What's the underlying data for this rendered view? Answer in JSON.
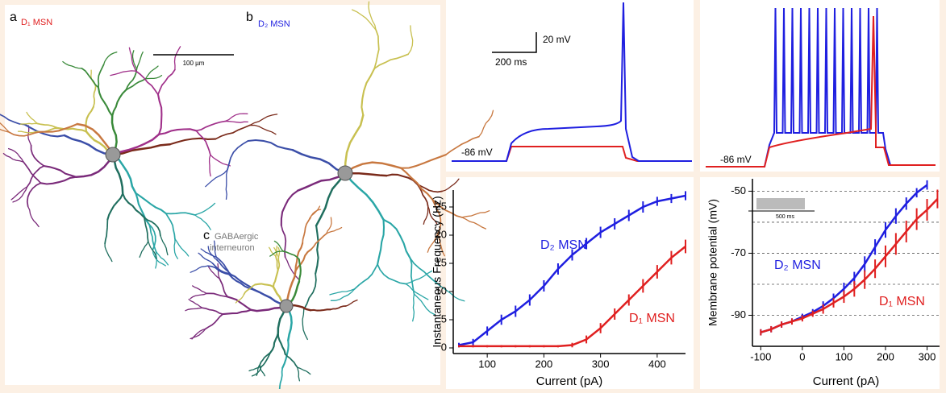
{
  "panels": {
    "a_label": "a",
    "a_title": "D₁ MSN",
    "b_label": "b",
    "b_title": "D₂ MSN",
    "c_label": "c",
    "c_title_1": "GABAergic",
    "c_title_2": "interneuron",
    "scale_bar": "100 µm"
  },
  "traces": {
    "resting_left": "-86 mV",
    "resting_right": "-86 mV",
    "scale_v": "20 mV",
    "scale_t": "200 ms",
    "inset_t": "500 ms"
  },
  "chart_data": [
    {
      "type": "line",
      "x_label": "Current (pA)",
      "y_label": "Instantaneous Frequency (Hz)",
      "xlim": [
        40,
        450
      ],
      "ylim": [
        -1,
        28
      ],
      "xticks": [
        100,
        200,
        300,
        400
      ],
      "yticks": [
        0,
        5,
        10,
        15,
        20,
        25
      ],
      "x": [
        50,
        75,
        100,
        125,
        150,
        175,
        200,
        225,
        250,
        275,
        300,
        325,
        350,
        375,
        400,
        425,
        450
      ],
      "series": [
        {
          "name": "D₂ MSN",
          "color": "#1f1fe0",
          "values": [
            0.5,
            1,
            3,
            5,
            6.5,
            8.5,
            11,
            14,
            16.5,
            18.5,
            20.5,
            22,
            23.5,
            25,
            26,
            26.5,
            27
          ],
          "errors": [
            0.4,
            0.6,
            0.8,
            0.9,
            1,
            1,
            1,
            1,
            1,
            1,
            1,
            1,
            1,
            1,
            0.8,
            0.8,
            0.8
          ]
        },
        {
          "name": "D₁ MSN",
          "color": "#e02020",
          "values": [
            0.3,
            0.3,
            0.3,
            0.3,
            0.3,
            0.3,
            0.3,
            0.3,
            0.5,
            1.5,
            3.5,
            6,
            8.5,
            11,
            13.5,
            16,
            18
          ],
          "errors": [
            0.2,
            0.2,
            0.2,
            0.2,
            0.2,
            0.2,
            0.2,
            0.2,
            0.4,
            0.7,
            0.9,
            1,
            1,
            1.2,
            1.2,
            1.2,
            1.2
          ]
        }
      ]
    },
    {
      "type": "line",
      "x_label": "Current (pA)",
      "y_label": "Membrane potential (mV)",
      "xlim": [
        -120,
        330
      ],
      "ylim": [
        -100,
        -46
      ],
      "xticks": [
        -100,
        0,
        100,
        200,
        300
      ],
      "yticks": [
        -50,
        -70,
        -90
      ],
      "grid_values": [
        -50,
        -60,
        -70,
        -80,
        -90
      ],
      "x": [
        -100,
        -75,
        -50,
        -25,
        0,
        25,
        50,
        75,
        100,
        125,
        150,
        175,
        200,
        225,
        250,
        275,
        300,
        325
      ],
      "series": [
        {
          "name": "D₂ MSN",
          "color": "#1f1fe0",
          "values": [
            -95.5,
            -94.5,
            -93,
            -92,
            -90.5,
            -89,
            -87,
            -84.5,
            -81.5,
            -78,
            -73.5,
            -68,
            -62.5,
            -58,
            -54,
            -50.5,
            -48,
            null
          ],
          "errors": [
            1,
            1,
            1,
            1,
            1,
            1,
            1.5,
            1.5,
            2,
            2,
            2.5,
            2.5,
            2.5,
            2.5,
            2,
            1.5,
            1.5,
            null
          ]
        },
        {
          "name": "D₁ MSN",
          "color": "#e02020",
          "values": [
            -95.5,
            -94.5,
            -93,
            -92,
            -91,
            -89.5,
            -88,
            -86,
            -84,
            -81.5,
            -78.5,
            -75,
            -71,
            -67,
            -63,
            -59,
            -56,
            -52.5
          ],
          "errors": [
            1,
            1,
            1,
            1,
            1,
            1,
            1.5,
            1.5,
            2,
            2.5,
            3,
            3,
            3.5,
            3.5,
            3.5,
            3.5,
            3.5,
            3
          ]
        }
      ]
    }
  ]
}
